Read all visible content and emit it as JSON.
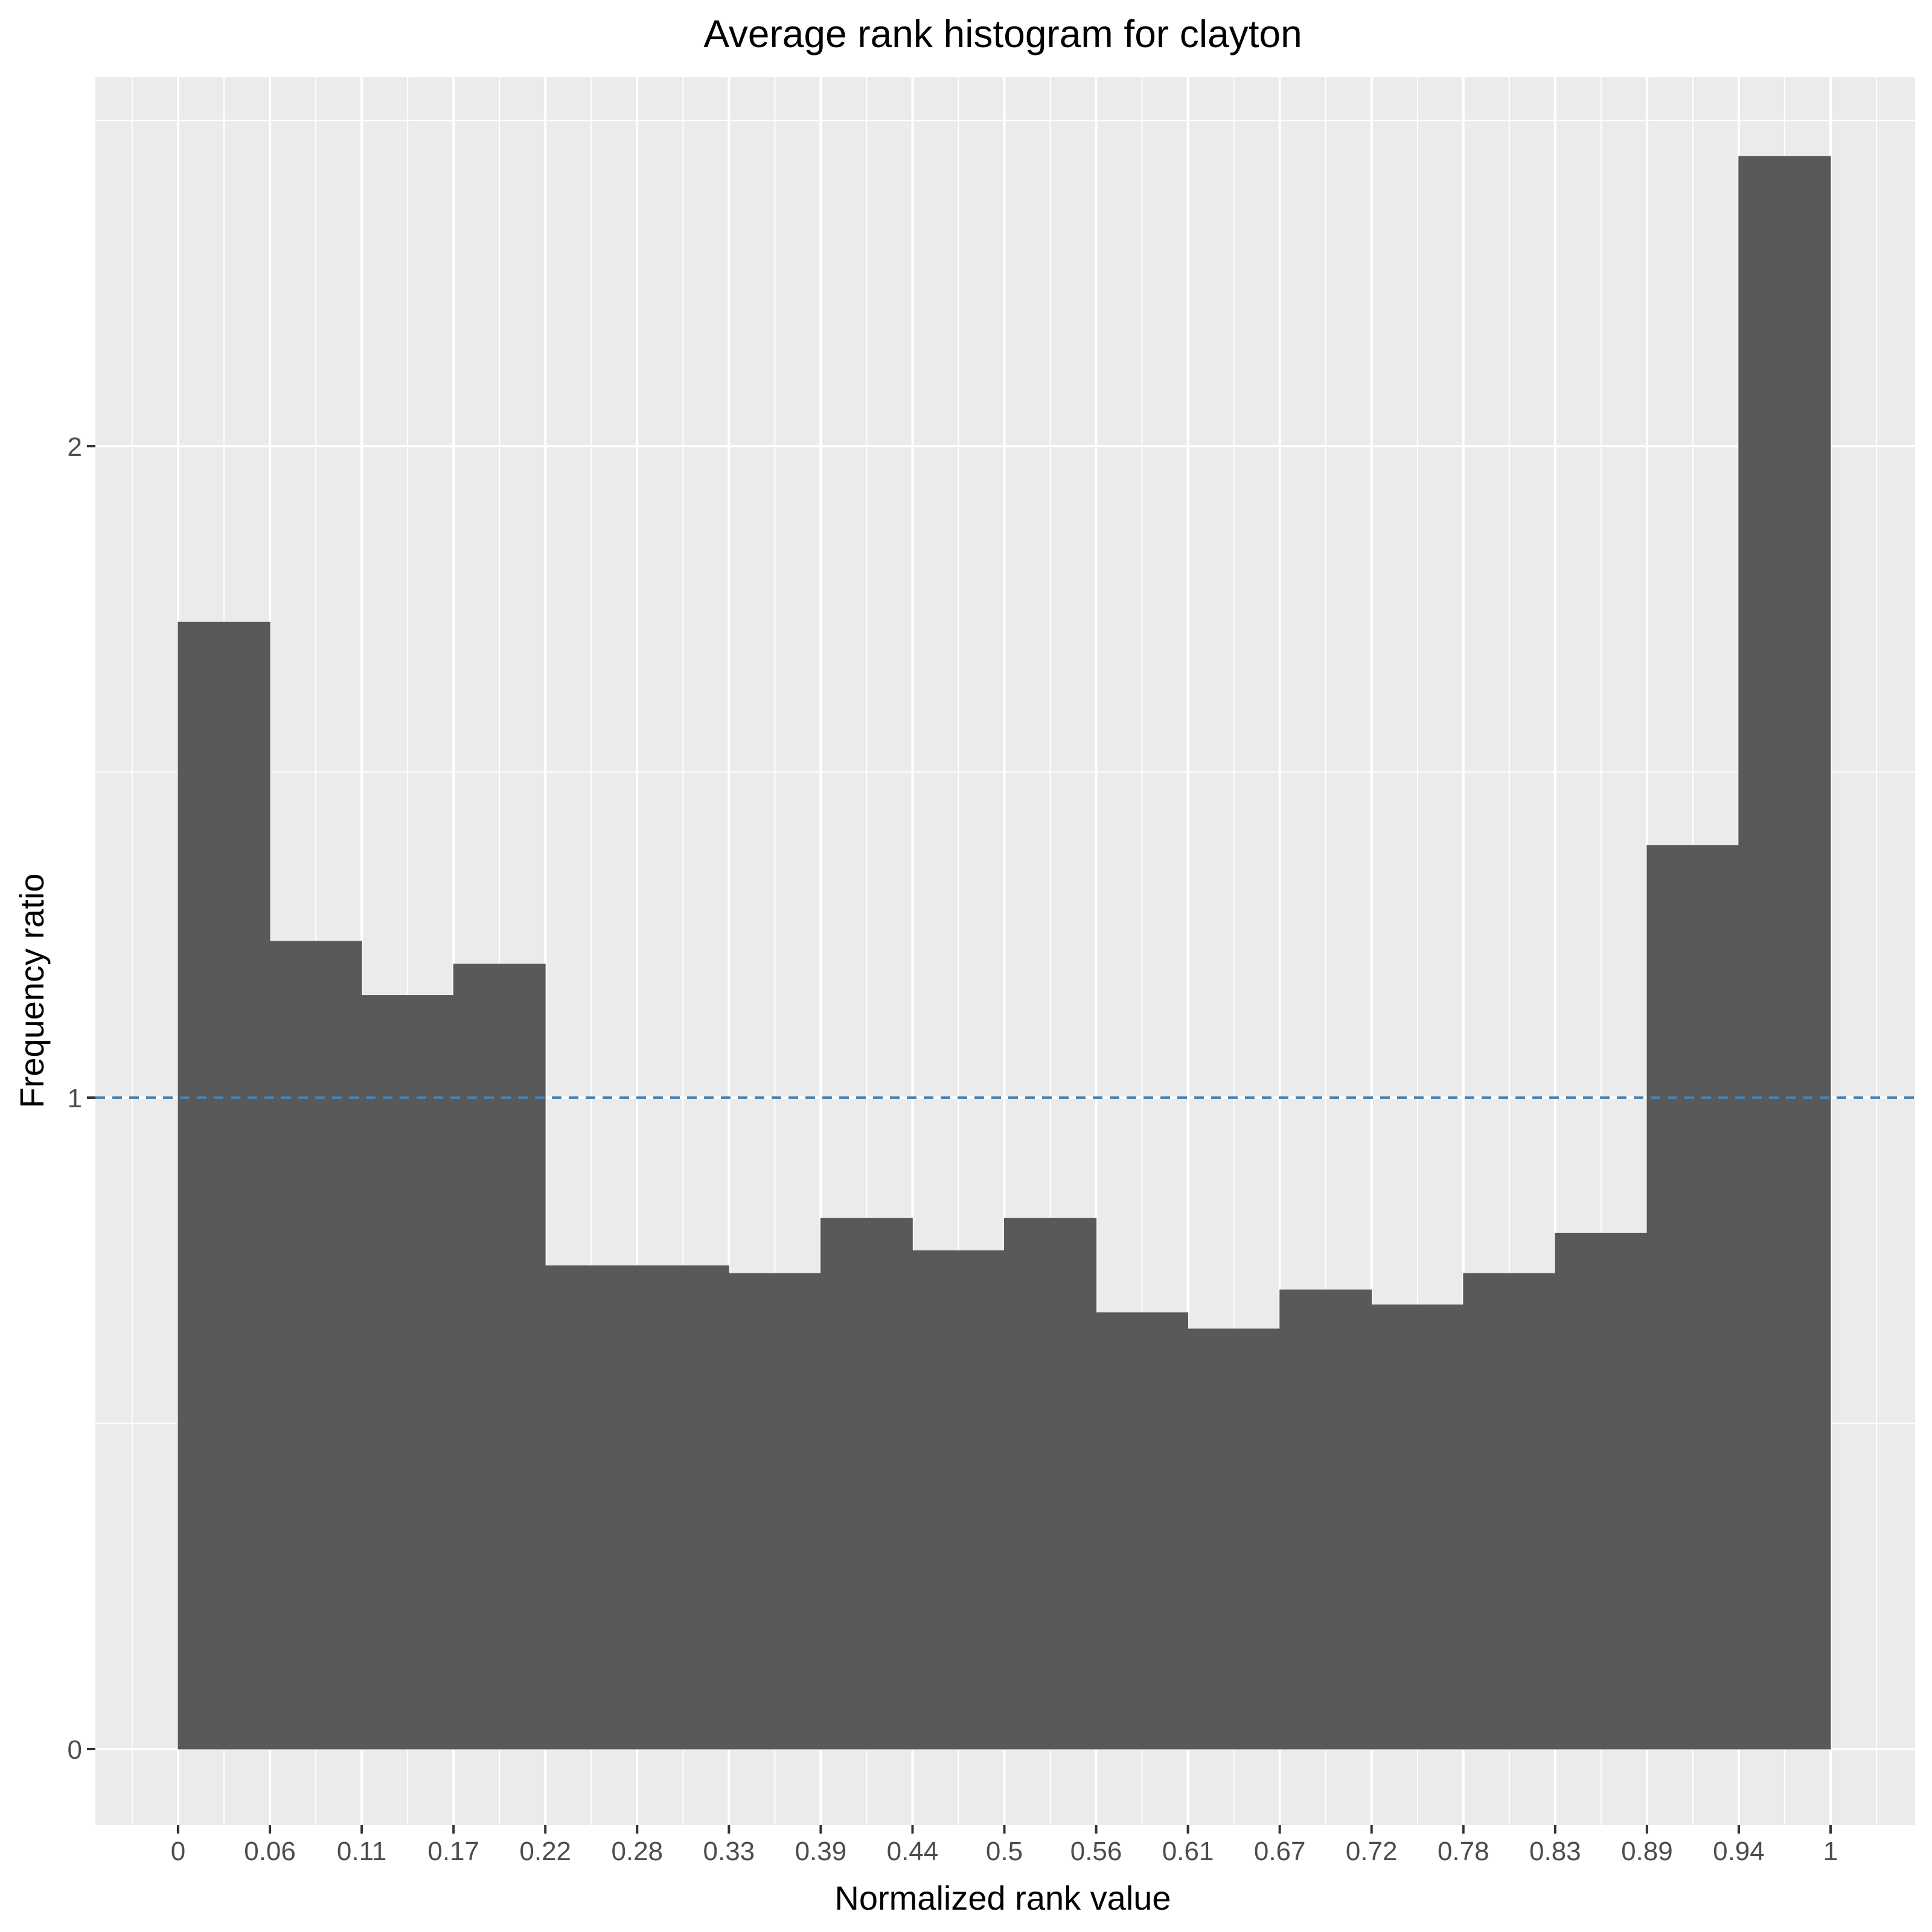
{
  "chart_data": {
    "type": "bar",
    "title": "Average rank histogram for clayton",
    "xlabel": "Normalized rank value",
    "ylabel": "Frequency ratio",
    "x_ticks": [
      "0",
      "0.06",
      "0.11",
      "0.17",
      "0.22",
      "0.28",
      "0.33",
      "0.39",
      "0.44",
      "0.5",
      "0.56",
      "0.61",
      "0.67",
      "0.72",
      "0.78",
      "0.83",
      "0.89",
      "0.94",
      "1"
    ],
    "y_ticks": [
      "0",
      "1",
      "2"
    ],
    "xlim": [
      -0.05,
      1.05
    ],
    "ylim": [
      -0.08,
      2.6
    ],
    "bins": [
      {
        "x0": 0,
        "x1": 0.0556,
        "value": 1.73
      },
      {
        "x0": 0.0556,
        "x1": 0.1111,
        "value": 1.24
      },
      {
        "x0": 0.1111,
        "x1": 0.1667,
        "value": 1.157
      },
      {
        "x0": 0.1667,
        "x1": 0.2222,
        "value": 1.205
      },
      {
        "x0": 0.2222,
        "x1": 0.2778,
        "value": 0.742
      },
      {
        "x0": 0.2778,
        "x1": 0.3333,
        "value": 0.742
      },
      {
        "x0": 0.3333,
        "x1": 0.3889,
        "value": 0.73
      },
      {
        "x0": 0.3889,
        "x1": 0.4444,
        "value": 0.815
      },
      {
        "x0": 0.4444,
        "x1": 0.5,
        "value": 0.765
      },
      {
        "x0": 0.5,
        "x1": 0.5556,
        "value": 0.815
      },
      {
        "x0": 0.5556,
        "x1": 0.6111,
        "value": 0.67
      },
      {
        "x0": 0.6111,
        "x1": 0.6667,
        "value": 0.645
      },
      {
        "x0": 0.6667,
        "x1": 0.7222,
        "value": 0.705
      },
      {
        "x0": 0.7222,
        "x1": 0.7778,
        "value": 0.682
      },
      {
        "x0": 0.7778,
        "x1": 0.8333,
        "value": 0.73
      },
      {
        "x0": 0.8333,
        "x1": 0.8889,
        "value": 0.792
      },
      {
        "x0": 0.8889,
        "x1": 0.9444,
        "value": 1.387
      },
      {
        "x0": 0.9444,
        "x1": 1,
        "value": 2.445
      }
    ],
    "reference_line": {
      "y": 1,
      "style": "dashed"
    },
    "grid": true,
    "legend": "none",
    "colors": {
      "bar": "#595959",
      "panel_background": "#ebebeb",
      "grid_line": "#ffffff",
      "reference_line": "#4682b4",
      "tick_text": "#4d4d4d"
    }
  }
}
